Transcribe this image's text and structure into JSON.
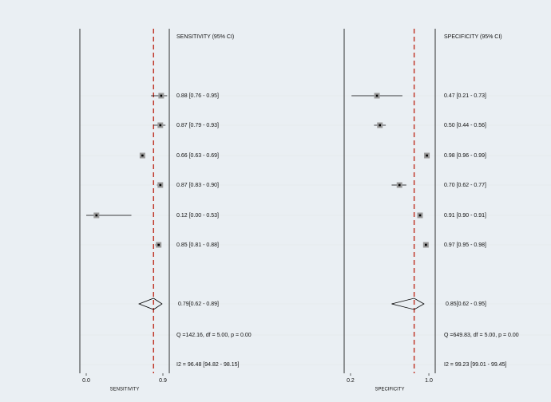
{
  "chart_data": [
    {
      "type": "forest",
      "title": "SENSITIVITY (95% CI)",
      "xlabel": "SENSITIVITY",
      "xlim": [
        -0.075,
        0.975
      ],
      "xticks": [
        {
          "value": 0,
          "label": "0.0"
        },
        {
          "value": 0.9,
          "label": "0.9"
        }
      ],
      "estimates": [
        0.88,
        0.87,
        0.66,
        0.87,
        0.12,
        0.85
      ],
      "lower": [
        0.76,
        0.79,
        0.63,
        0.83,
        0.0,
        0.81
      ],
      "upper": [
        0.95,
        0.93,
        0.69,
        0.9,
        0.53,
        0.88
      ],
      "value_labels": [
        "0.88 [0.76 - 0.95]",
        "0.87 [0.79 - 0.93]",
        "0.66 [0.63 - 0.69]",
        "0.87 [0.83 - 0.90]",
        "0.12 [0.00 - 0.53]",
        "0.85 [0.81 - 0.88]"
      ],
      "pooled": {
        "value": 0.79,
        "lower": 0.62,
        "upper": 0.89,
        "label": "0.79[0.62 - 0.89]"
      },
      "q_label": "Q =142.16, df = 5.00, p =  0.00",
      "i2_label": "I2 = 96.48 [94.82 - 98.15]",
      "color": "#c0392b"
    },
    {
      "type": "forest",
      "title": "SPECIFICITY (95% CI)",
      "xlabel": "SPECIFICITY",
      "xlim": [
        0.135,
        1.065
      ],
      "xticks": [
        {
          "value": 0.2,
          "label": "0.2"
        },
        {
          "value": 1.0,
          "label": "1.0"
        }
      ],
      "estimates": [
        0.47,
        0.5,
        0.98,
        0.7,
        0.91,
        0.97
      ],
      "lower": [
        0.21,
        0.44,
        0.96,
        0.62,
        0.9,
        0.95
      ],
      "upper": [
        0.73,
        0.56,
        0.99,
        0.77,
        0.91,
        0.98
      ],
      "value_labels": [
        "0.47 [0.21 - 0.73]",
        "0.50 [0.44 - 0.56]",
        "0.98 [0.96 - 0.99]",
        "0.70 [0.62 - 0.77]",
        "0.91 [0.90 - 0.91]",
        "0.97 [0.95 - 0.98]"
      ],
      "pooled": {
        "value": 0.85,
        "lower": 0.62,
        "upper": 0.95,
        "label": "0.85[0.62 - 0.95]"
      },
      "q_label": "Q =649.83, df = 5.00, p =  0.00",
      "i2_label": "I2 = 99.23 [99.01 - 99.45]",
      "color": "#c0392b"
    }
  ]
}
